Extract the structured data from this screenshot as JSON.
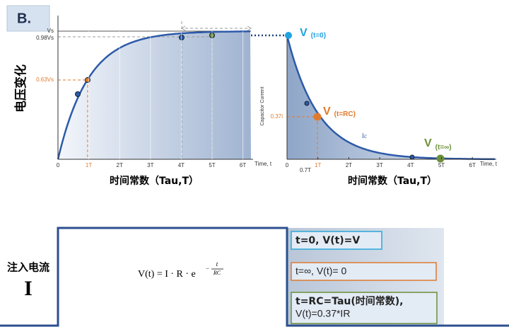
{
  "panel_label": "B.",
  "left_chart": {
    "y_label": "电压变化",
    "x_label": "时间常数（Tau,T）",
    "x_axis_end": "Time, t",
    "x_ticks": [
      "0",
      "1T",
      "2T",
      "3T",
      "4T",
      "5T",
      "6T"
    ],
    "y_ticks": [
      "Vs",
      "0.98Vs",
      "0.63Vs"
    ]
  },
  "right_chart": {
    "y_label": "Capacitor Current",
    "x_label": "时间常数（Tau,T）",
    "x_axis_end": "Time, t",
    "x_ticks": [
      "0",
      "1T",
      "2T",
      "3T",
      "4T",
      "5T",
      "6T"
    ],
    "extra_tick": "0.7T",
    "y_tick": "0.37i",
    "curve_label": "Ic",
    "points": [
      {
        "symbol": "V",
        "sub": "(t=0)"
      },
      {
        "symbol": "V",
        "sub": "(t=RC)"
      },
      {
        "symbol": "V",
        "sub": "(t=∞)"
      }
    ]
  },
  "input": {
    "label": "注入电流",
    "symbol": "I"
  },
  "formula": {
    "main": "V(t) = I · R · e",
    "exp_sign": "−",
    "exp_num": "t",
    "exp_den": "RC"
  },
  "notes": [
    "t=0,   V(t)=V",
    "t=∞, V(t)= 0",
    "t=RC=Tau(时间常数),",
    "V(t)=0.37*IR"
  ]
}
